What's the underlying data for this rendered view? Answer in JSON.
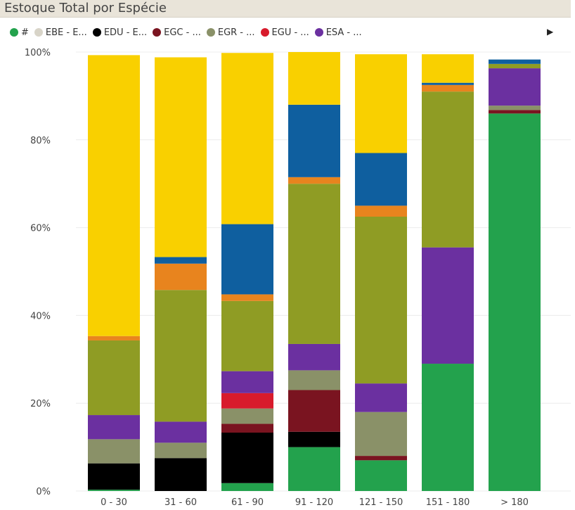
{
  "chart_data": {
    "type": "bar",
    "stacked": "percent",
    "title": "Estoque Total por Espécie",
    "categories": [
      "0 - 30",
      "31 - 60",
      "61 - 90",
      "91 - 120",
      "121 - 150",
      "151 - 180",
      "> 180"
    ],
    "yticks": [
      "0%",
      "20%",
      "40%",
      "60%",
      "80%",
      "100%"
    ],
    "ylim": [
      0,
      100
    ],
    "legend": {
      "position": "top",
      "entries": [
        {
          "label": "#",
          "color": "#23a24d"
        },
        {
          "label": "EBE - E...",
          "color": "#d8d4c8"
        },
        {
          "label": "EDU - E...",
          "color": "#000000"
        },
        {
          "label": "EGC - ...",
          "color": "#7a1420"
        },
        {
          "label": "EGR - ...",
          "color": "#8a9168"
        },
        {
          "label": "EGU - ...",
          "color": "#d81b2c"
        },
        {
          "label": "ESA - ...",
          "color": "#6b30a0"
        }
      ]
    },
    "series": [
      {
        "name": "#",
        "color": "#23a24d",
        "values": [
          0.3,
          0,
          1.8,
          10,
          7,
          29,
          86
        ]
      },
      {
        "name": "EBE - E...",
        "color": "#d8d4c8",
        "values": [
          0,
          0,
          0,
          0,
          0,
          0,
          0
        ]
      },
      {
        "name": "EDU - E...",
        "color": "#000000",
        "values": [
          6,
          7.5,
          11.5,
          3.5,
          0,
          0,
          0
        ]
      },
      {
        "name": "EGC - ...",
        "color": "#7a1420",
        "values": [
          0,
          0,
          2,
          9.5,
          1,
          0,
          0.8
        ]
      },
      {
        "name": "EGR - ...",
        "color": "#8a9168",
        "values": [
          5.5,
          3.5,
          3.5,
          4.5,
          10,
          0,
          1
        ]
      },
      {
        "name": "EGU - ...",
        "color": "#d81b2c",
        "values": [
          0,
          0,
          3.5,
          0,
          0,
          0,
          0
        ]
      },
      {
        "name": "ESA - ...",
        "color": "#6b30a0",
        "values": [
          5.5,
          4.8,
          5,
          6,
          6.5,
          26.5,
          8.5
        ]
      },
      {
        "color": "#8f9c24",
        "values": [
          17,
          30,
          16,
          36.5,
          38,
          35.5,
          1
        ]
      },
      {
        "color": "#e8841e",
        "values": [
          1,
          6,
          1.5,
          1.5,
          2.5,
          1.5,
          0
        ]
      },
      {
        "color": "#0f5f9f",
        "values": [
          0,
          1.5,
          16,
          16.5,
          12,
          0.5,
          1
        ]
      },
      {
        "color": "#f9d000",
        "values": [
          64,
          45.5,
          39,
          12,
          22.5,
          6.5,
          0
        ]
      }
    ]
  }
}
